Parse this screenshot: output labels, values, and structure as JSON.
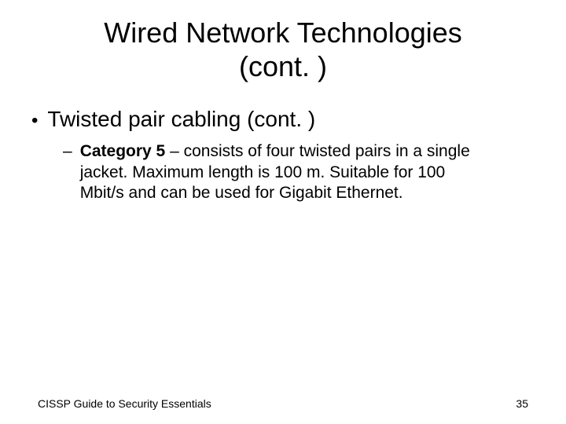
{
  "slide": {
    "title_line1": "Wired Network Technologies",
    "title_line2": "(cont. )",
    "title_fontsize": 36,
    "background_color": "#ffffff",
    "text_color": "#000000"
  },
  "bullets": {
    "level1": {
      "text": "Twisted pair cabling (cont. )",
      "marker": "•",
      "fontsize": 28
    },
    "level2": {
      "marker": "–",
      "bold_prefix": "Category 5",
      "rest": " – consists of four twisted pairs in a single jacket. Maximum length is 100 m.  Suitable for 100 Mbit/s and can be used for Gigabit Ethernet.",
      "fontsize": 21
    }
  },
  "footer": {
    "left_text": "CISSP Guide to Security Essentials",
    "right_text": "35",
    "fontsize": 14
  }
}
